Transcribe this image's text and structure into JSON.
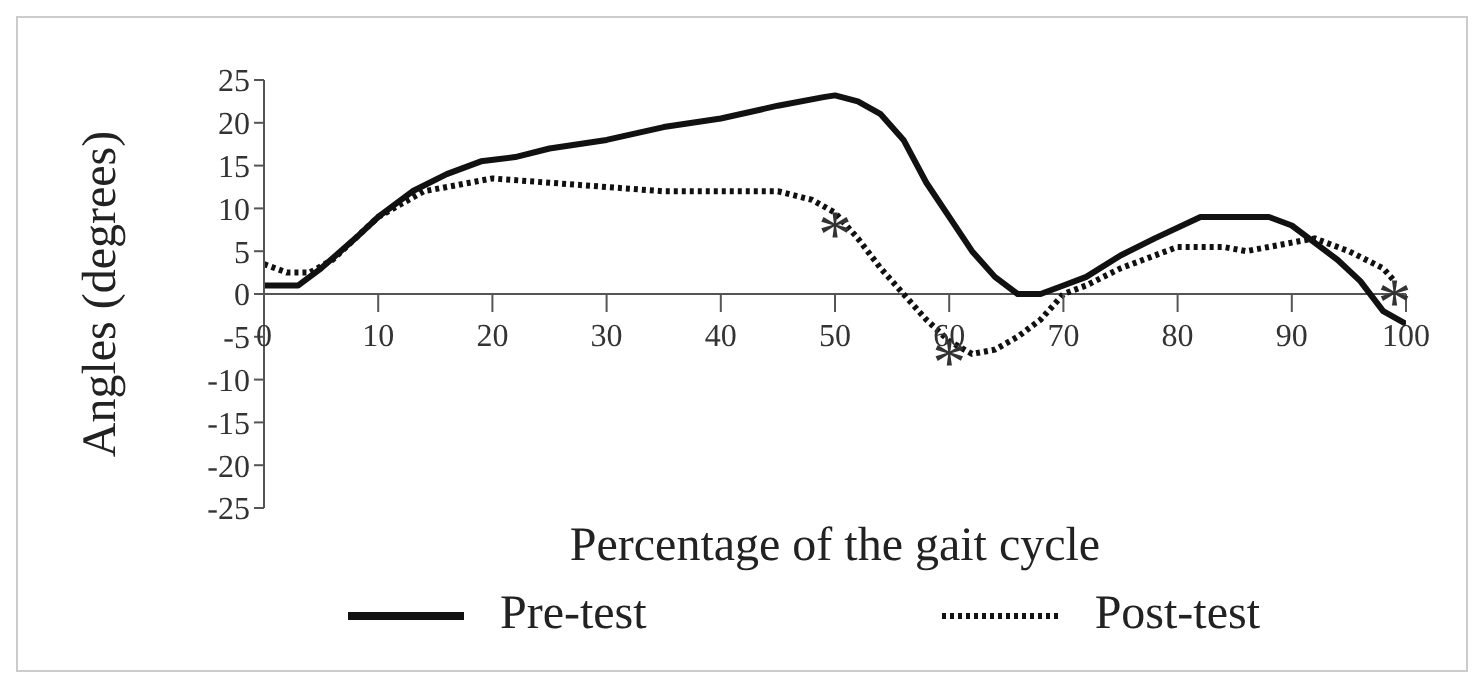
{
  "chart_data": {
    "type": "line",
    "xlabel": "Percentage of the gait cycle",
    "ylabel": "Angles (degrees)",
    "xlim": [
      0,
      100
    ],
    "xticks": [
      0,
      10,
      20,
      30,
      40,
      50,
      60,
      70,
      80,
      90,
      100
    ],
    "ylim": [
      -25,
      25
    ],
    "yticks": [
      -25,
      -20,
      -15,
      -10,
      -5,
      0,
      5,
      10,
      15,
      20,
      25
    ],
    "grid": false,
    "legend": "bottom",
    "marker": "none",
    "series": [
      {
        "name": "Pre-test",
        "color": "#111111",
        "line_style": "solid",
        "x": [
          0,
          2,
          3,
          5,
          8,
          10,
          13,
          16,
          19,
          22,
          25,
          30,
          35,
          40,
          45,
          49,
          50,
          52,
          54,
          56,
          58,
          60,
          62,
          64,
          66,
          68,
          70,
          72,
          75,
          78,
          82,
          88,
          90,
          92,
          94,
          96,
          98,
          100
        ],
        "values": [
          1,
          1,
          1,
          3,
          6.5,
          9,
          12,
          14,
          15.5,
          16,
          17,
          18,
          19.5,
          20.5,
          22,
          23,
          23.2,
          22.5,
          21,
          18,
          13,
          9,
          5,
          2,
          0,
          0,
          1,
          2,
          4.5,
          6.5,
          9,
          9,
          8,
          6,
          4,
          1.5,
          -2,
          -3.5
        ]
      },
      {
        "name": "Post-test",
        "color": "#111111",
        "line_style": "dotted",
        "x": [
          0,
          2,
          4,
          6,
          10,
          14,
          18,
          20,
          25,
          30,
          35,
          40,
          45,
          48,
          50,
          52,
          54,
          56,
          58,
          60,
          62,
          64,
          66,
          68,
          70,
          72,
          75,
          78,
          80,
          84,
          86,
          90,
          92,
          95,
          98,
          99
        ],
        "values": [
          3.5,
          2.5,
          2.5,
          4,
          9,
          12,
          13,
          13.5,
          13,
          12.5,
          12,
          12,
          12,
          11,
          9.5,
          6.5,
          3,
          0,
          -3,
          -5.5,
          -7,
          -6.5,
          -5,
          -3,
          0,
          1,
          3,
          4.5,
          5.5,
          5.5,
          5,
          6,
          6.5,
          5,
          3,
          1.5
        ]
      }
    ],
    "annotations": [
      {
        "text": "*",
        "x": 50,
        "y": 9.5
      },
      {
        "text": "*",
        "x": 60,
        "y": -5.5
      },
      {
        "text": "*",
        "x": 99,
        "y": 1.5
      }
    ]
  }
}
